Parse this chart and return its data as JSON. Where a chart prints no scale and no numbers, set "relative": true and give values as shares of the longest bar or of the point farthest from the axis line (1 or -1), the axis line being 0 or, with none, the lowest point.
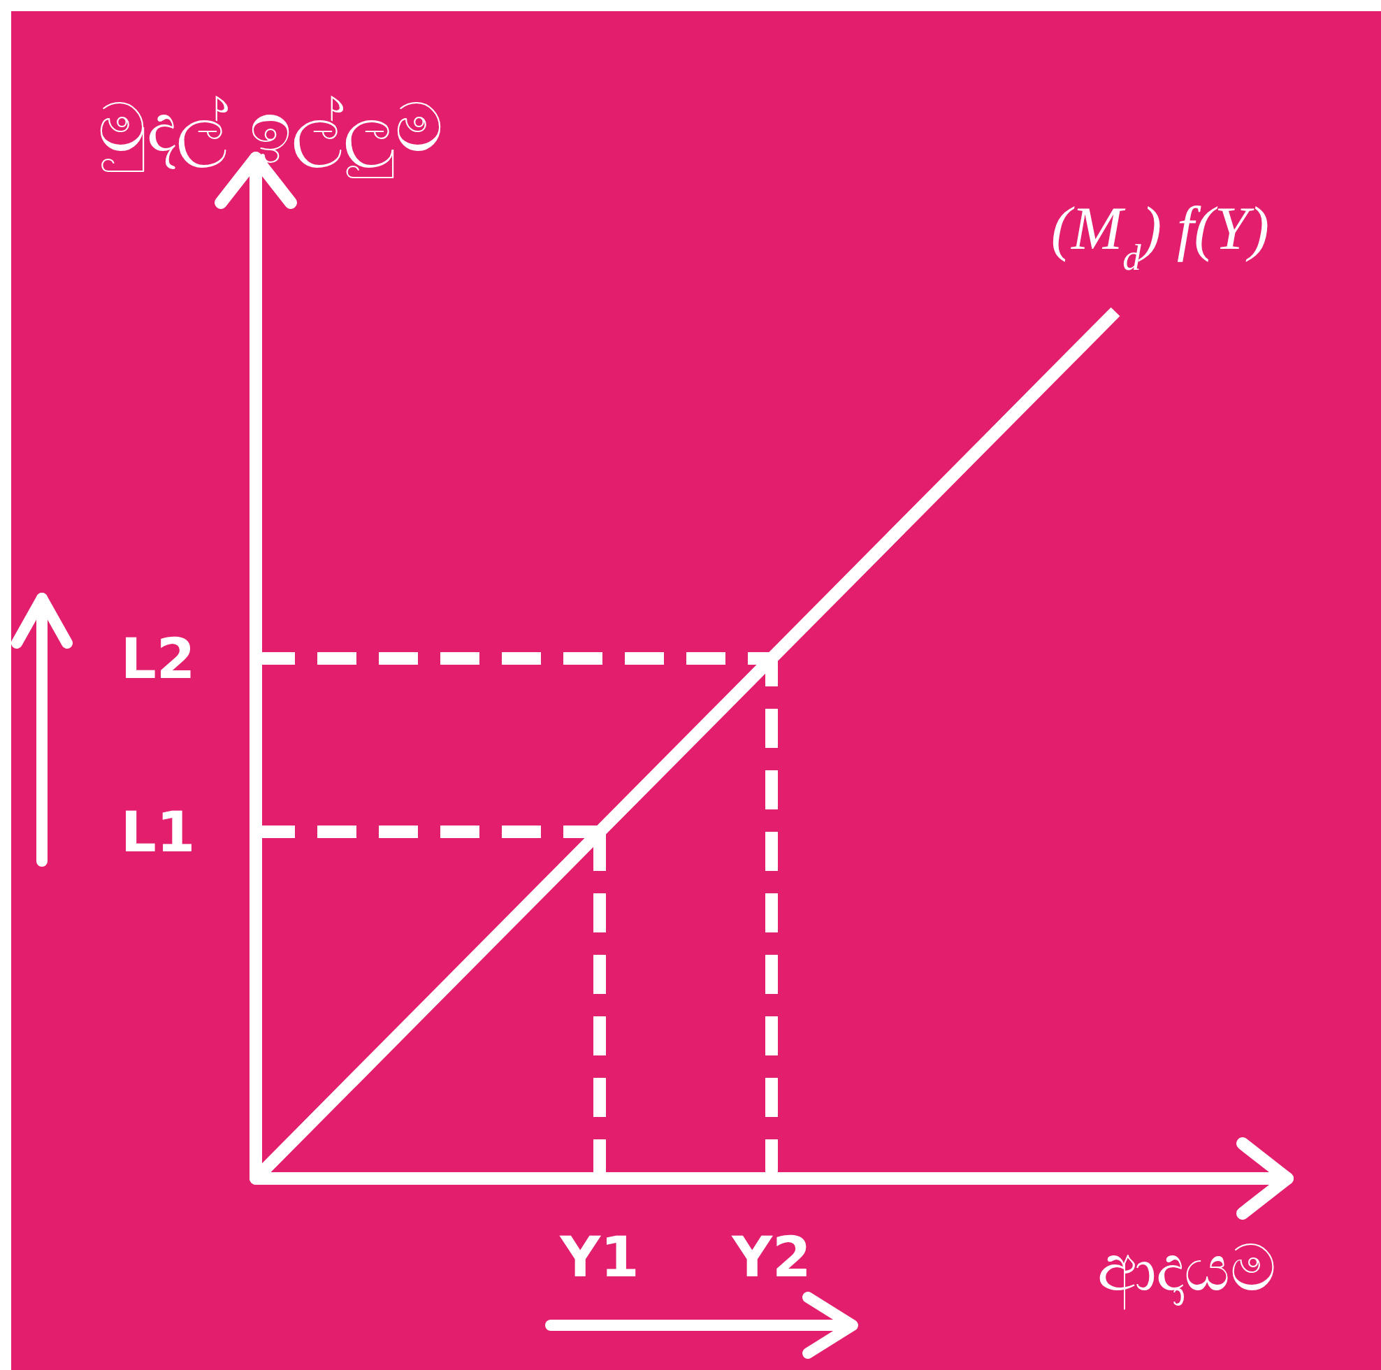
{
  "chart_data": {
    "type": "line",
    "relative": true,
    "xlabel": "ආදායම",
    "ylabel": "මුදල් ඉල්ලුම",
    "categories": [
      null,
      null,
      "Y1",
      "Y2",
      null,
      null
    ],
    "grid": false,
    "marker": "none",
    "line_style": "solid",
    "series": [
      {
        "name": "(M$_{d}$) f(Y)",
        "color": "#ffffff",
        "values": [
          0,
          0.2,
          0.4,
          0.6,
          0.8,
          1
        ]
      }
    ],
    "ref_lines": [
      {
        "axis": "y",
        "value": 0.4,
        "label": "L1",
        "color": "#ffffff",
        "line_style": "dashed"
      },
      {
        "axis": "y",
        "value": 0.6,
        "label": "L2",
        "color": "#ffffff",
        "line_style": "dashed"
      },
      {
        "axis": "x",
        "value": "Y1",
        "color": "#ffffff",
        "line_style": "dashed"
      },
      {
        "axis": "x",
        "value": "Y2",
        "color": "#ffffff",
        "line_style": "dashed"
      }
    ]
  }
}
